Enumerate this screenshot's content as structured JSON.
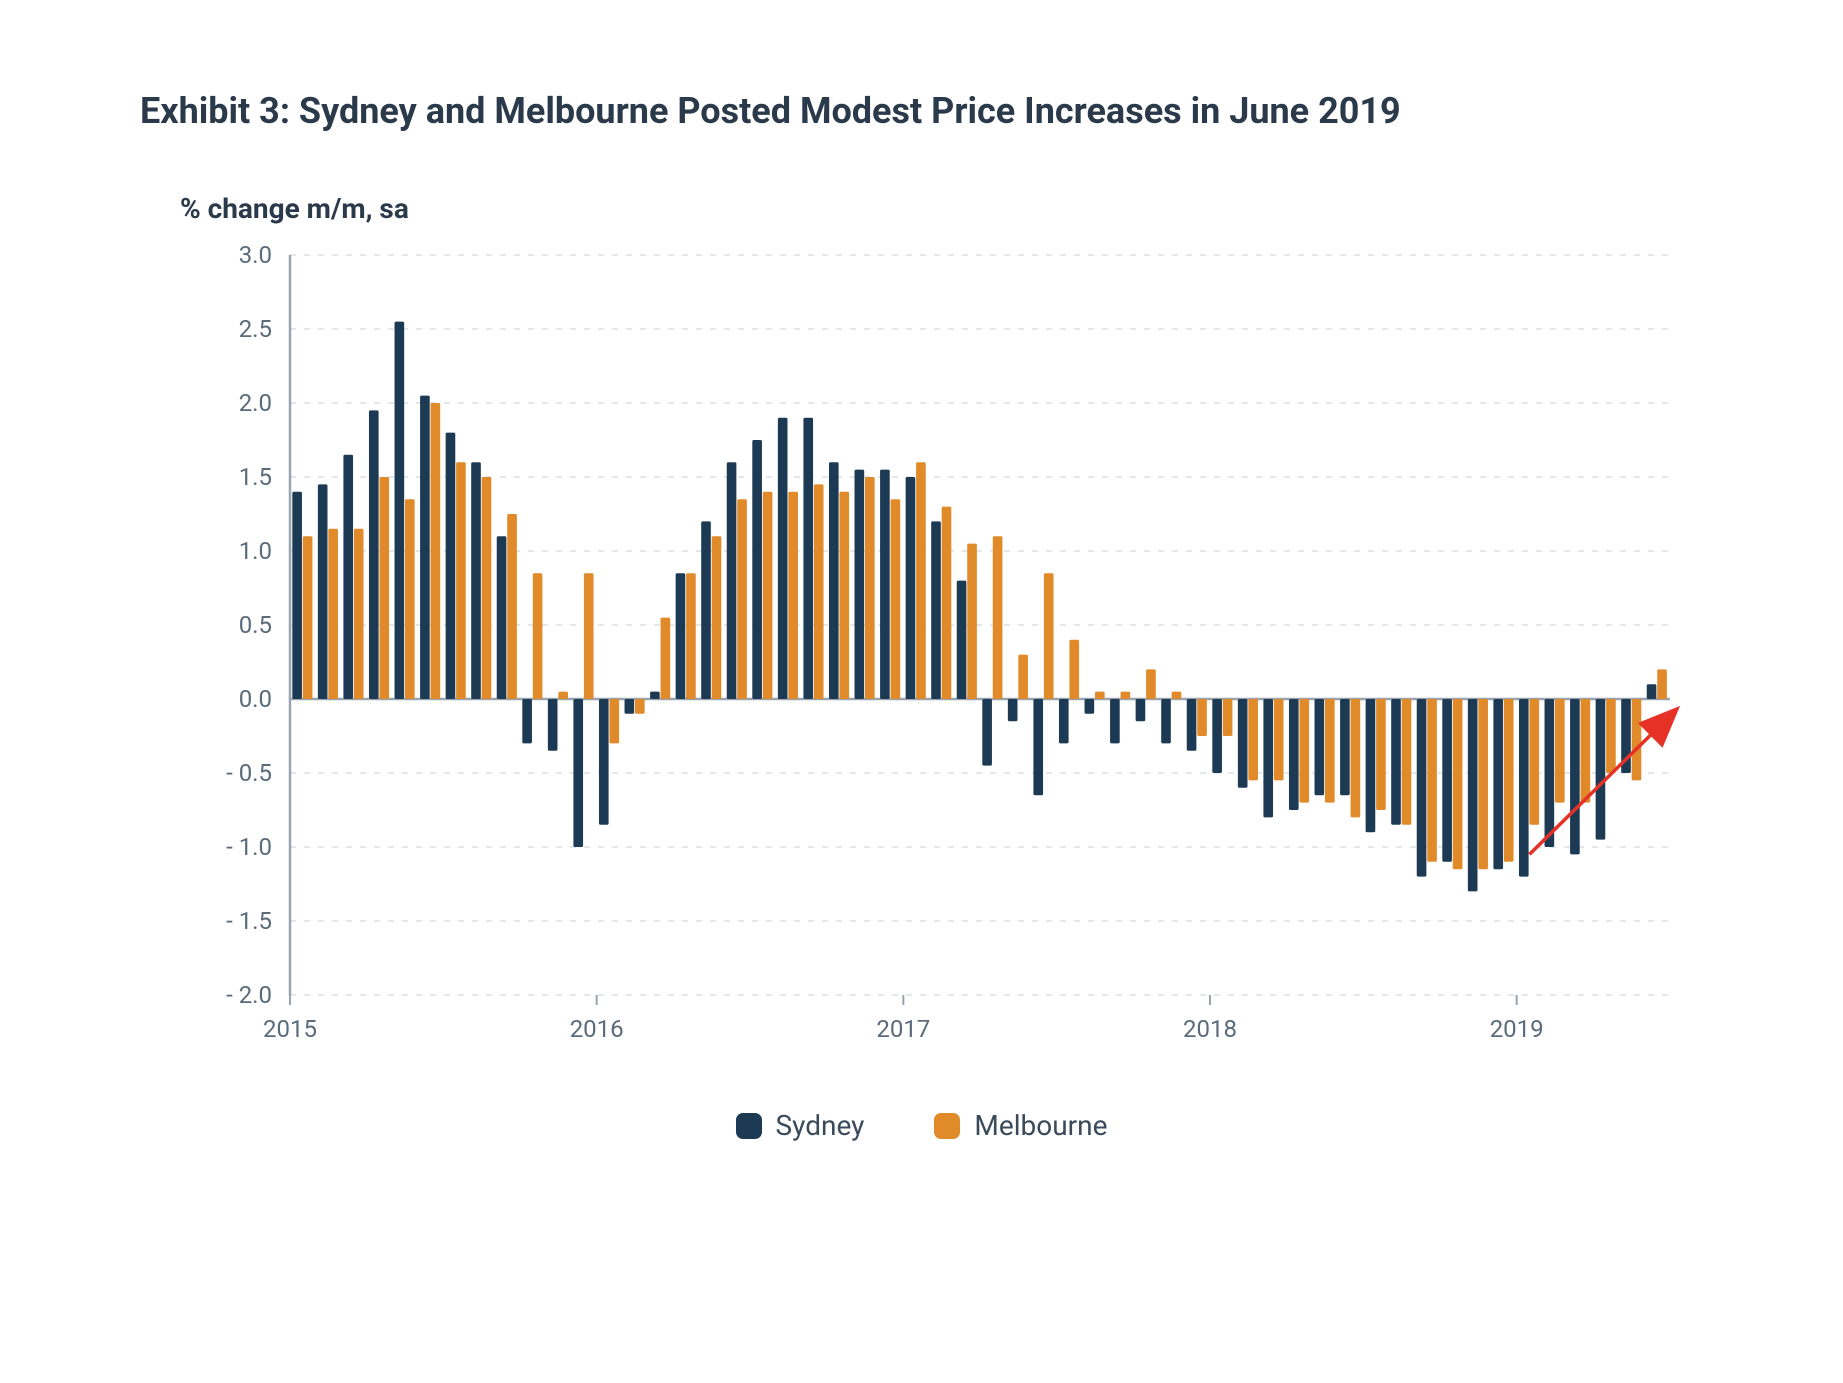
{
  "title": "Exhibit 3: Sydney and Melbourne Posted Modest Price Increases in June 2019",
  "ylabel": "% change m/m, sa",
  "chart": {
    "type": "bar",
    "background_color": "#ffffff",
    "grid_color": "#e3e6ea",
    "axis_color": "#9aa4af",
    "tick_font_size": 24,
    "tick_color": "#5a6b7b",
    "ylim": [
      -2.0,
      3.0
    ],
    "ytick_step": 0.5,
    "yticks": [
      "- 2.0",
      "- 1.5",
      "- 1.0",
      "- 0.5",
      "0.0",
      "0.5",
      "1.0",
      "1.5",
      "2.0",
      "2.5",
      "3.0"
    ],
    "xticks": [
      "2015",
      "2016",
      "2017",
      "2018",
      "2019"
    ],
    "xtick_positions": [
      0,
      12,
      24,
      36,
      48
    ],
    "n_periods": 54,
    "bar_group_width": 0.82,
    "series": [
      {
        "name": "Sydney",
        "color": "#1d3a55",
        "values": [
          1.4,
          1.45,
          1.65,
          1.95,
          2.55,
          2.05,
          1.8,
          1.6,
          1.1,
          -0.3,
          -0.35,
          -1.0,
          -0.85,
          -0.1,
          0.05,
          0.85,
          1.2,
          1.6,
          1.75,
          1.9,
          1.9,
          1.6,
          1.55,
          1.55,
          1.5,
          1.2,
          0.8,
          -0.45,
          -0.15,
          -0.65,
          -0.3,
          -0.1,
          -0.3,
          -0.15,
          -0.3,
          -0.35,
          -0.5,
          -0.6,
          -0.8,
          -0.75,
          -0.65,
          -0.65,
          -0.9,
          -0.85,
          -1.2,
          -1.1,
          -1.3,
          -1.15,
          -1.2,
          -1.0,
          -1.05,
          -0.95,
          -0.5,
          0.1
        ]
      },
      {
        "name": "Melbourne",
        "color": "#e18a2a",
        "values": [
          1.1,
          1.15,
          1.15,
          1.5,
          1.35,
          2.0,
          1.6,
          1.5,
          1.25,
          0.85,
          0.05,
          0.85,
          -0.3,
          -0.1,
          0.55,
          0.85,
          1.1,
          1.35,
          1.4,
          1.4,
          1.45,
          1.4,
          1.5,
          1.35,
          1.6,
          1.3,
          1.05,
          1.1,
          0.3,
          0.85,
          0.4,
          0.05,
          0.05,
          0.2,
          0.05,
          -0.25,
          -0.25,
          -0.55,
          -0.55,
          -0.7,
          -0.7,
          -0.8,
          -0.75,
          -0.85,
          -1.1,
          -1.15,
          -1.15,
          -1.1,
          -0.85,
          -0.7,
          -0.7,
          -0.5,
          -0.55,
          0.2
        ]
      }
    ],
    "annotation_arrow": {
      "color": "#e63127",
      "width": 3.5,
      "from_period": 48.5,
      "from_value": -1.05,
      "to_period": 54.2,
      "to_value": -0.08
    }
  },
  "legend": {
    "items": [
      {
        "label": "Sydney",
        "color": "#1d3a55"
      },
      {
        "label": "Melbourne",
        "color": "#e18a2a"
      }
    ]
  }
}
